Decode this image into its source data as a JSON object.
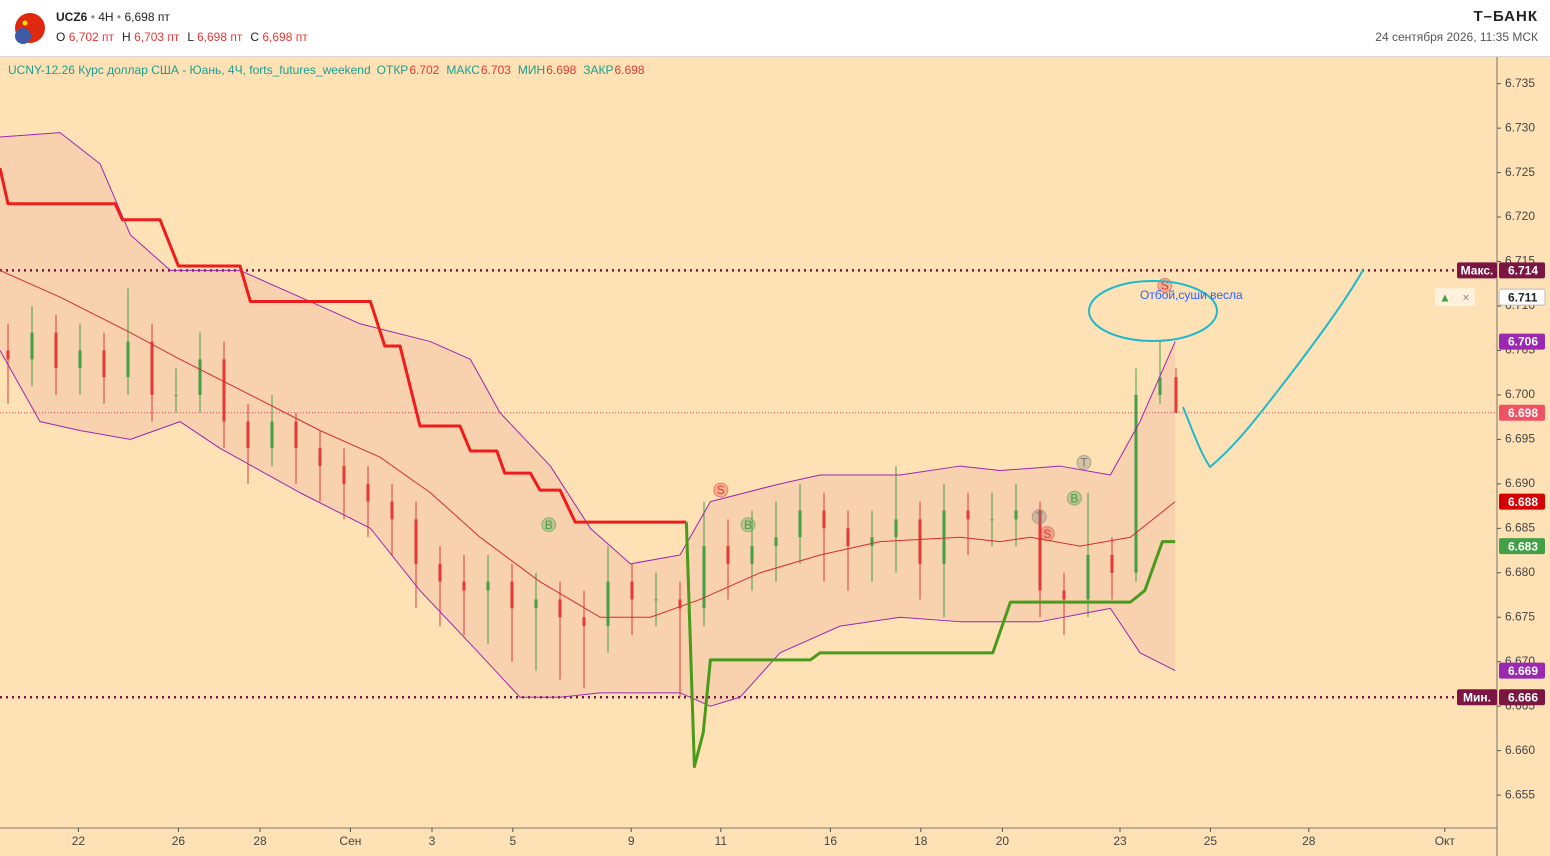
{
  "header": {
    "symbol": "UCZ6",
    "interval": "4H",
    "price": "6,698 пт",
    "ohlc": [
      {
        "key": "O",
        "value": "6,702 пт"
      },
      {
        "key": "H",
        "value": "6,703 пт"
      },
      {
        "key": "L",
        "value": "6,698 пт"
      },
      {
        "key": "C",
        "value": "6,698 пт"
      }
    ],
    "brand": "Т–БАНК",
    "datetime": "24 сентября 2026, 11:35 МСК"
  },
  "chart_data": {
    "type": "candlestick",
    "legend_text": "UCNY-12.26 Курс доллар США - Юань, 4Ч, forts_futures_weekend",
    "legend_values": [
      {
        "label": "ОТКР",
        "value": 6.702
      },
      {
        "label": "МАКС",
        "value": 6.703
      },
      {
        "label": "МИН",
        "value": 6.698
      },
      {
        "label": "ЗАКР",
        "value": 6.698
      }
    ],
    "xlim": [
      0,
      187.125
    ],
    "xticks": [
      {
        "value": 9.8,
        "label": "22"
      },
      {
        "value": 22.3,
        "label": "26"
      },
      {
        "value": 32.5,
        "label": "28"
      },
      {
        "value": 43.8,
        "label": "Сен"
      },
      {
        "value": 54,
        "label": "3"
      },
      {
        "value": 64.1,
        "label": "5"
      },
      {
        "value": 78.9,
        "label": "9"
      },
      {
        "value": 90.1,
        "label": "11"
      },
      {
        "value": 103.8,
        "label": "16"
      },
      {
        "value": 115.1,
        "label": "18"
      },
      {
        "value": 125.3,
        "label": "20"
      },
      {
        "value": 140,
        "label": "23"
      },
      {
        "value": 151.3,
        "label": "25"
      },
      {
        "value": 163.6,
        "label": "28"
      },
      {
        "value": 180.6,
        "label": "Окт"
      }
    ],
    "ylim": [
      6.6513,
      6.738
    ],
    "yticks": [
      6.655,
      {
        "value": 6.66,
        "label": "6.660"
      },
      6.665,
      {
        "value": 6.67,
        "label": "6.670"
      },
      6.675,
      {
        "value": 6.68,
        "label": "6.680"
      },
      6.685,
      {
        "value": 6.69,
        "label": "6.690"
      },
      6.695,
      {
        "value": 6.7,
        "label": "6.700"
      },
      6.705,
      {
        "value": 6.71,
        "label": "6.710"
      },
      6.715,
      {
        "value": 6.72,
        "label": "6.720"
      },
      6.725,
      {
        "value": 6.73,
        "label": "6.730"
      },
      6.735
    ],
    "up_color": "#43a047",
    "down_color": "#e53935",
    "candles": {
      "x": [
        1,
        4,
        7,
        10,
        13,
        16,
        19,
        22,
        25,
        28,
        31,
        34,
        37,
        40,
        43,
        46,
        49,
        52,
        55,
        58,
        61,
        64,
        67,
        70,
        73,
        76,
        79,
        82,
        85,
        88,
        91,
        94,
        97,
        100,
        103,
        106,
        109,
        112,
        115,
        118,
        121,
        124,
        127,
        130,
        133,
        136,
        139,
        142,
        145,
        147
      ],
      "open": [
        6.705,
        6.704,
        6.707,
        6.703,
        6.705,
        6.702,
        6.706,
        6.7,
        6.7,
        6.704,
        6.697,
        6.694,
        6.697,
        6.694,
        6.692,
        6.69,
        6.688,
        6.686,
        6.681,
        6.679,
        6.678,
        6.679,
        6.676,
        6.677,
        6.675,
        6.674,
        6.679,
        6.677,
        6.677,
        6.676,
        6.683,
        6.681,
        6.683,
        6.684,
        6.687,
        6.685,
        6.683,
        6.684,
        6.686,
        6.681,
        6.687,
        6.686,
        6.686,
        6.687,
        6.678,
        6.677,
        6.682,
        6.68,
        6.7,
        6.702
      ],
      "high": [
        6.708,
        6.71,
        6.709,
        6.708,
        6.707,
        6.712,
        6.708,
        6.703,
        6.707,
        6.706,
        6.699,
        6.7,
        6.698,
        6.696,
        6.694,
        6.692,
        6.69,
        6.688,
        6.683,
        6.682,
        6.682,
        6.681,
        6.68,
        6.679,
        6.678,
        6.683,
        6.681,
        6.68,
        6.679,
        6.688,
        6.686,
        6.687,
        6.688,
        6.69,
        6.689,
        6.687,
        6.687,
        6.692,
        6.688,
        6.69,
        6.689,
        6.689,
        6.69,
        6.688,
        6.68,
        6.689,
        6.684,
        6.703,
        6.706,
        6.703
      ],
      "low": [
        6.699,
        6.701,
        6.7,
        6.7,
        6.699,
        6.7,
        6.697,
        6.698,
        6.698,
        6.694,
        6.69,
        6.692,
        6.69,
        6.688,
        6.686,
        6.684,
        6.682,
        6.676,
        6.674,
        6.673,
        6.672,
        6.67,
        6.669,
        6.668,
        6.667,
        6.671,
        6.673,
        6.674,
        6.666,
        6.674,
        6.677,
        6.678,
        6.679,
        6.681,
        6.679,
        6.678,
        6.679,
        6.68,
        6.677,
        6.675,
        6.682,
        6.683,
        6.683,
        6.675,
        6.673,
        6.675,
        6.677,
        6.679,
        6.699,
        6.698
      ],
      "close": [
        6.704,
        6.707,
        6.703,
        6.705,
        6.702,
        6.706,
        6.7,
        6.7,
        6.704,
        6.697,
        6.694,
        6.697,
        6.694,
        6.692,
        6.69,
        6.688,
        6.686,
        6.681,
        6.679,
        6.678,
        6.679,
        6.676,
        6.677,
        6.675,
        6.674,
        6.679,
        6.677,
        6.677,
        6.676,
        6.683,
        6.681,
        6.683,
        6.684,
        6.687,
        6.685,
        6.683,
        6.684,
        6.686,
        6.681,
        6.687,
        6.686,
        6.686,
        6.687,
        6.678,
        6.677,
        6.682,
        6.68,
        6.7,
        6.702,
        6.698
      ]
    },
    "band_fill": "rgba(226,150,150,0.22)",
    "overlays": [
      {
        "color": "#9c27b0",
        "width": 1,
        "x": [
          0,
          7.5,
          12.5,
          16.3,
          21.3,
          30,
          37.5,
          45,
          53.8,
          58.8,
          62.5,
          68.8,
          73.8,
          78.8,
          85,
          88.8,
          97.5,
          102.5,
          112.5,
          120,
          125,
          132.5,
          138.8,
          142.5,
          146.9
        ],
        "values": [
          6.729,
          6.7295,
          6.726,
          6.718,
          6.714,
          6.714,
          6.711,
          6.708,
          6.706,
          6.704,
          6.698,
          6.692,
          6.685,
          6.681,
          6.682,
          6.688,
          6.69,
          6.691,
          6.691,
          6.692,
          6.6915,
          6.692,
          6.691,
          6.697,
          6.706
        ]
      },
      {
        "color": "#d32f2f",
        "width": 1,
        "x": [
          0,
          7.5,
          16.3,
          22.5,
          31.3,
          40,
          47.5,
          53.8,
          60,
          67.5,
          75,
          81.3,
          87.5,
          95,
          102.5,
          110,
          120,
          125,
          128.8,
          135,
          141.3,
          146.9
        ],
        "values": [
          6.714,
          6.711,
          6.707,
          6.704,
          6.7,
          6.696,
          6.693,
          6.689,
          6.684,
          6.679,
          6.675,
          6.675,
          6.677,
          6.68,
          6.682,
          6.6835,
          6.684,
          6.6835,
          6.684,
          6.683,
          6.684,
          6.688
        ]
      },
      {
        "color": "#9c27b0",
        "width": 1,
        "x": [
          0,
          5,
          10,
          16.3,
          22.5,
          27.5,
          37.5,
          46.3,
          52.5,
          58.8,
          65,
          70,
          75,
          85,
          88.8,
          92.5,
          97.5,
          105,
          112.5,
          120,
          130,
          138.8,
          142.5,
          146.9
        ],
        "values": [
          6.705,
          6.697,
          6.696,
          6.695,
          6.697,
          6.694,
          6.689,
          6.685,
          6.678,
          6.672,
          6.666,
          6.666,
          6.6665,
          6.6665,
          6.665,
          6.666,
          6.671,
          6.674,
          6.675,
          6.6745,
          6.6745,
          6.676,
          6.671,
          6.669
        ]
      },
      {
        "color": "#ef1c1c",
        "width": 3,
        "x": [
          0,
          1,
          14.4,
          15.3,
          20,
          22.3,
          30,
          31.3,
          46.3,
          48.1,
          50,
          52.5,
          57.5,
          58.8,
          62.1,
          63.1,
          66.3,
          67.5,
          70,
          71.9,
          85.8
        ],
        "values": [
          6.7255,
          6.7215,
          6.7215,
          6.7197,
          6.7197,
          6.7145,
          6.7145,
          6.7105,
          6.7105,
          6.7055,
          6.7055,
          6.6965,
          6.6965,
          6.6937,
          6.6937,
          6.6912,
          6.6912,
          6.6893,
          6.6893,
          6.6857,
          6.6857
        ]
      },
      {
        "color": "#4a9a1c",
        "width": 3,
        "x": [
          85.8,
          86.8,
          87.9,
          88.8,
          101.3,
          102.5,
          124.1,
          126.3,
          141.3,
          143.1,
          145.3,
          146.9
        ],
        "values": [
          6.6857,
          6.6582,
          6.662,
          6.6702,
          6.6702,
          6.671,
          6.671,
          6.6767,
          6.6767,
          6.678,
          6.6835,
          6.6835
        ]
      }
    ],
    "signals": [
      {
        "label": "B",
        "x": 68.6,
        "y": 6.6854,
        "color": "#43a047"
      },
      {
        "label": "S",
        "x": 90.1,
        "y": 6.6893,
        "color": "#e53935"
      },
      {
        "label": "B",
        "x": 93.5,
        "y": 6.6854,
        "color": "#43a047"
      },
      {
        "label": "T",
        "x": 135.5,
        "y": 6.6924,
        "color": "#777777"
      },
      {
        "label": "B",
        "x": 134.3,
        "y": 6.6884,
        "color": "#43a047"
      },
      {
        "label": "T",
        "x": 129.9,
        "y": 6.6863,
        "color": "#777777"
      },
      {
        "label": "S",
        "x": 130.9,
        "y": 6.6844,
        "color": "#e53935"
      },
      {
        "label": "S",
        "x": 145.6,
        "y": 6.7123,
        "color": "#e53935"
      }
    ],
    "hlines": [
      {
        "value": 6.714,
        "color": "#7b1541"
      },
      {
        "value": 6.666,
        "color": "#7b1541"
      },
      {
        "value": 6.698,
        "color": "#e53950"
      }
    ],
    "price_labels": [
      {
        "label": "Макс.",
        "value": 6.714,
        "color": "#7b1541"
      },
      {
        "value": 6.711,
        "color": "#ffffff"
      },
      {
        "value": 6.706,
        "color": "#9c27b0"
      },
      {
        "value": 6.698,
        "color": "#ef5363"
      },
      {
        "value": 6.688,
        "color": "#d50000"
      },
      {
        "value": 6.683,
        "color": "#43a047"
      },
      {
        "value": 6.669,
        "color": "#9c27b0"
      },
      {
        "label": "Мин.",
        "value": 6.666,
        "color": "#7b1541"
      }
    ],
    "annotation": "Отбой,суши весла"
  }
}
